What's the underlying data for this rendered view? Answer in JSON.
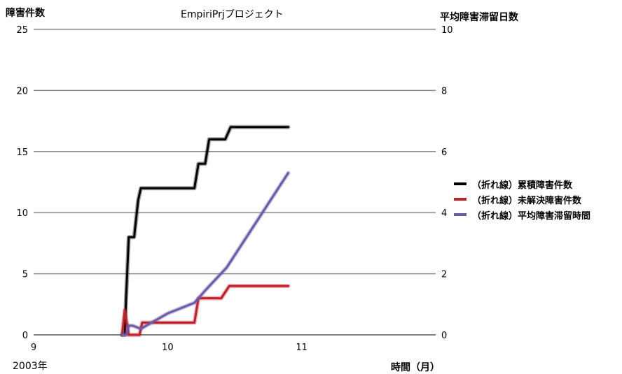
{
  "chart_data": {
    "type": "line",
    "title": "EmpiriPrjプロジェクト",
    "ylabel_left": "障害件数",
    "ylabel_right": "平均障害滞留日数",
    "xlabel": "時間（月）",
    "year_label": "2003年",
    "xlim": [
      9,
      12
    ],
    "x_ticks": [
      "9",
      "10",
      "11"
    ],
    "ylim_left": [
      0,
      25
    ],
    "y_ticks_left": [
      "0",
      "5",
      "10",
      "15",
      "20",
      "25"
    ],
    "ylim_right": [
      0,
      10
    ],
    "y_ticks_right": [
      "0",
      "2",
      "4",
      "6",
      "8",
      "10"
    ],
    "grid": true,
    "legend_position": "right",
    "series": [
      {
        "name": "（折れ線）累積障害件数",
        "color": "#000000",
        "axis": "left",
        "points": [
          [
            9.66,
            0
          ],
          [
            9.68,
            0
          ],
          [
            9.69,
            3
          ],
          [
            9.71,
            8
          ],
          [
            9.75,
            8
          ],
          [
            9.78,
            11
          ],
          [
            9.8,
            12
          ],
          [
            10.2,
            12
          ],
          [
            10.23,
            14
          ],
          [
            10.28,
            14
          ],
          [
            10.31,
            16
          ],
          [
            10.43,
            16
          ],
          [
            10.47,
            17
          ],
          [
            10.9,
            17
          ]
        ]
      },
      {
        "name": "（折れ線）未解決障害件数",
        "color": "#c0202a",
        "axis": "left",
        "points": [
          [
            9.66,
            0
          ],
          [
            9.68,
            2
          ],
          [
            9.71,
            0
          ],
          [
            9.79,
            0
          ],
          [
            9.81,
            1
          ],
          [
            10.2,
            1
          ],
          [
            10.23,
            3
          ],
          [
            10.4,
            3
          ],
          [
            10.46,
            4
          ],
          [
            10.9,
            4
          ]
        ]
      },
      {
        "name": "（折れ線）平均障害滞留時間",
        "color": "#6a5aa8",
        "axis": "right",
        "points": [
          [
            9.66,
            0
          ],
          [
            9.69,
            0
          ],
          [
            9.71,
            0.3
          ],
          [
            9.74,
            0.3
          ],
          [
            9.8,
            0.2
          ],
          [
            9.86,
            0.35
          ],
          [
            10.0,
            0.7
          ],
          [
            10.2,
            1.05
          ],
          [
            10.28,
            1.45
          ],
          [
            10.44,
            2.2
          ],
          [
            10.9,
            5.3
          ]
        ]
      }
    ]
  }
}
